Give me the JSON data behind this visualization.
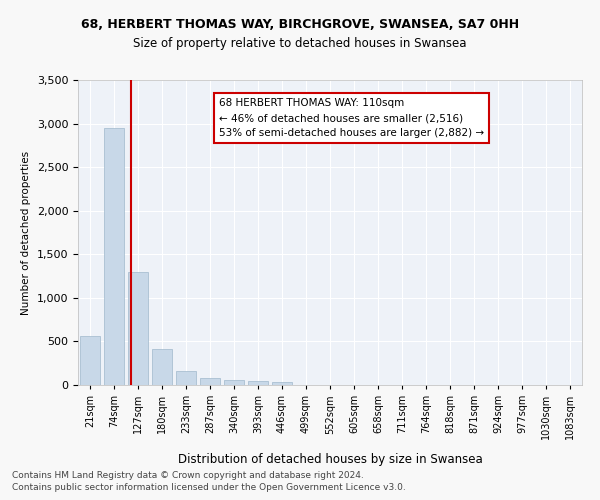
{
  "title1": "68, HERBERT THOMAS WAY, BIRCHGROVE, SWANSEA, SA7 0HH",
  "title2": "Size of property relative to detached houses in Swansea",
  "xlabel": "Distribution of detached houses by size in Swansea",
  "ylabel": "Number of detached properties",
  "categories": [
    "21sqm",
    "74sqm",
    "127sqm",
    "180sqm",
    "233sqm",
    "287sqm",
    "340sqm",
    "393sqm",
    "446sqm",
    "499sqm",
    "552sqm",
    "605sqm",
    "658sqm",
    "711sqm",
    "764sqm",
    "818sqm",
    "871sqm",
    "924sqm",
    "977sqm",
    "1030sqm",
    "1083sqm"
  ],
  "values": [
    560,
    2950,
    1300,
    410,
    160,
    85,
    55,
    45,
    35,
    0,
    0,
    0,
    0,
    0,
    0,
    0,
    0,
    0,
    0,
    0,
    0
  ],
  "bar_color": "#c8d8e8",
  "bar_edge_color": "#a0b8cc",
  "vline_pos": 1.7,
  "vline_color": "#cc0000",
  "ann_line1": "68 HERBERT THOMAS WAY: 110sqm",
  "ann_line2": "← 46% of detached houses are smaller (2,516)",
  "ann_line3": "53% of semi-detached houses are larger (2,882) →",
  "ann_box_color": "#cc0000",
  "ylim": [
    0,
    3500
  ],
  "yticks": [
    0,
    500,
    1000,
    1500,
    2000,
    2500,
    3000,
    3500
  ],
  "footer1": "Contains HM Land Registry data © Crown copyright and database right 2024.",
  "footer2": "Contains public sector information licensed under the Open Government Licence v3.0.",
  "bg_color": "#eef2f8"
}
